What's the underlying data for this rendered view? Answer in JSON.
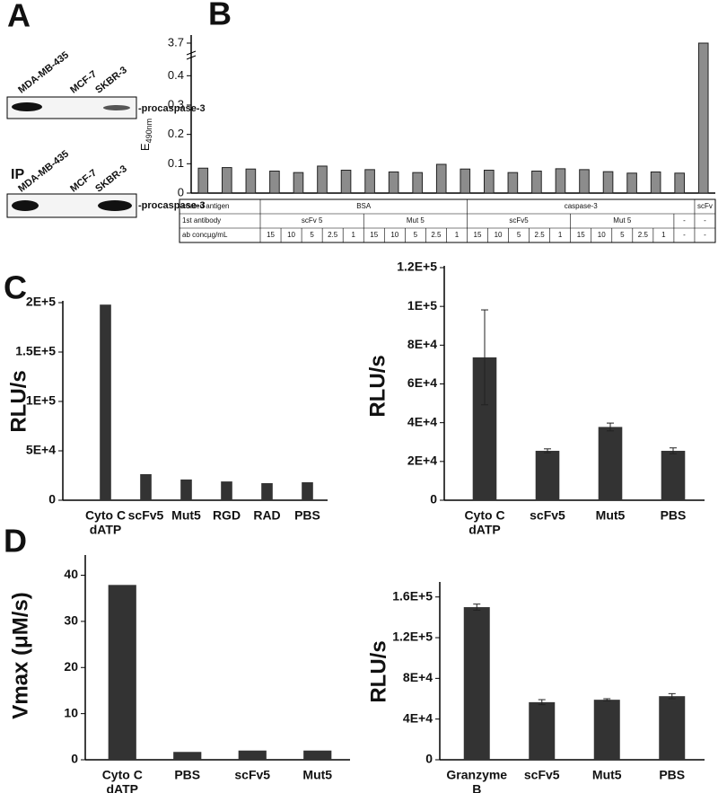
{
  "panels": [
    "A",
    "B",
    "C",
    "D"
  ],
  "blots": [
    {
      "lanes": [
        "MDA-MB-435",
        "MCF-7",
        "SKBR-3"
      ],
      "band_label": "-procaspase-3"
    },
    {
      "prefix": "IP",
      "lanes": [
        "MDA-MB-435",
        "MCF-7",
        "SKBR-3"
      ],
      "band_label": "-procaspase-3"
    }
  ],
  "chart_data": [
    {
      "type": "bar",
      "ylabel": "E",
      "ylabel_sub": "490nm",
      "color": "#8c8c8c",
      "values": [
        0.085,
        0.087,
        0.082,
        0.075,
        0.07,
        0.092,
        0.078,
        0.08,
        0.072,
        0.07,
        0.098,
        0.082,
        0.078,
        0.07,
        0.075,
        0.083,
        0.08,
        0.073,
        0.068,
        0.072,
        0.068,
        3.7
      ],
      "ylim": [
        0,
        3.75
      ],
      "axis_break": [
        0.45,
        3.6
      ],
      "yticks": [
        0,
        0.1,
        0.2,
        0.3,
        0.4,
        3.7
      ],
      "table": {
        "rows": [
          [
            "coated antigen",
            "BSA",
            "caspase-3",
            "scFv"
          ],
          [
            "1st antibody",
            "scFv 5",
            "Mut 5",
            "scFv5",
            "Mut 5",
            "-",
            "-"
          ],
          [
            "ab concµg/mL",
            15,
            10,
            5,
            2.5,
            1,
            15,
            10,
            5,
            2.5,
            1,
            15,
            10,
            5,
            2.5,
            1,
            15,
            10,
            5,
            2.5,
            1,
            "-",
            "-"
          ]
        ]
      }
    },
    {
      "type": "bar",
      "ylabel": "RLU/s",
      "color": "#333333",
      "categories": [
        [
          "Cyto C",
          "dATP"
        ],
        "scFv5",
        "Mut5",
        "RGD",
        "RAD",
        "PBS"
      ],
      "values": [
        198000,
        26400,
        21000,
        19000,
        17300,
        18200
      ],
      "ylim": [
        0,
        200000
      ],
      "yticks": [
        0,
        {
          "value": 50000,
          "label": "5E+4"
        },
        {
          "value": 100000,
          "label": "1E+5"
        },
        {
          "value": 150000,
          "label": "1.5E+5"
        },
        {
          "value": 200000,
          "label": "2E+5"
        }
      ]
    },
    {
      "type": "bar",
      "ylabel": "RLU/s",
      "color": "#333333",
      "categories": [
        [
          "Cyto C",
          "dATP"
        ],
        "scFv5",
        "Mut5",
        "PBS"
      ],
      "values": [
        73700,
        25500,
        37800,
        25500
      ],
      "errors": [
        24500,
        1000,
        2000,
        1500
      ],
      "ylim": [
        0,
        120000
      ],
      "yticks": [
        0,
        {
          "value": 20000,
          "label": "2E+4"
        },
        {
          "value": 40000,
          "label": "4E+4"
        },
        {
          "value": 60000,
          "label": "6E+4"
        },
        {
          "value": 80000,
          "label": "8E+4"
        },
        {
          "value": 100000,
          "label": "1E+5"
        },
        {
          "value": 120000,
          "label": "1.2E+5"
        }
      ]
    },
    {
      "type": "bar",
      "ylabel": "Vmax (μM/s)",
      "color": "#333333",
      "categories": [
        [
          "Cyto C",
          "dATP"
        ],
        "PBS",
        "scFv5",
        "Mut5"
      ],
      "values": [
        37.9,
        1.7,
        2,
        2
      ],
      "ylim": [
        0,
        44
      ],
      "yticks": [
        0,
        10,
        20,
        30,
        40
      ]
    },
    {
      "type": "bar",
      "ylabel": "RLU/s",
      "color": "#333333",
      "categories": [
        [
          "Granzyme",
          "B"
        ],
        "scFv5",
        "Mut5",
        "PBS"
      ],
      "values": [
        150000,
        56600,
        59000,
        62500
      ],
      "errors": [
        3000,
        2500,
        1000,
        2500
      ],
      "ylim": [
        0,
        173000
      ],
      "yticks": [
        0,
        {
          "value": 40000,
          "label": "4E+4"
        },
        {
          "value": 80000,
          "label": "8E+4"
        },
        {
          "value": 120000,
          "label": "1.2E+5"
        },
        {
          "value": 160000,
          "label": "1.6E+5"
        }
      ]
    }
  ]
}
